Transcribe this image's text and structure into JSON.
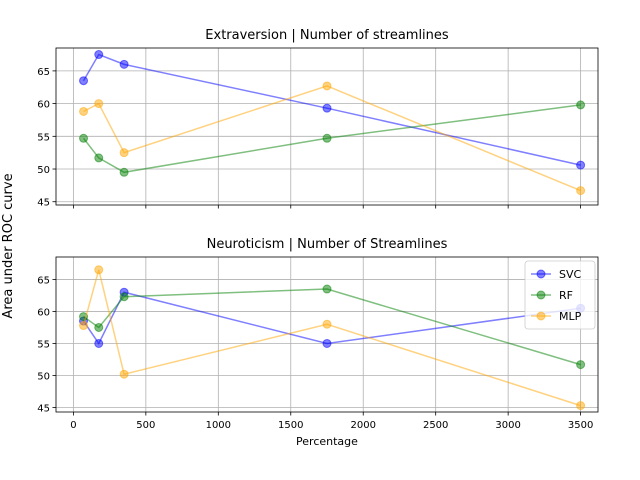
{
  "ylabel": "Area under ROC curve",
  "chart_data": [
    {
      "type": "line",
      "title": "Extraversion | Number of streamlines",
      "xlabel": "",
      "ylabel": "",
      "xlim": [
        -120,
        3620
      ],
      "ylim": [
        44.5,
        68.5
      ],
      "xticks": [
        0,
        500,
        1000,
        1500,
        2000,
        2500,
        3000,
        3500
      ],
      "xtick_labels_visible": false,
      "yticks": [
        45,
        50,
        55,
        60,
        65
      ],
      "grid": true,
      "legend": null,
      "x": [
        70,
        175,
        350,
        1750,
        3500
      ],
      "series": [
        {
          "name": "SVC",
          "color": "#0000ff",
          "values": [
            63.5,
            67.5,
            66.0,
            59.3,
            50.6
          ]
        },
        {
          "name": "RF",
          "color": "#008000",
          "values": [
            54.7,
            51.7,
            49.5,
            54.7,
            59.8
          ]
        },
        {
          "name": "MLP",
          "color": "#ffa500",
          "values": [
            58.8,
            60.0,
            52.5,
            62.7,
            46.7
          ]
        }
      ]
    },
    {
      "type": "line",
      "title": "Neuroticism | Number of Streamlines",
      "xlabel": "Percentage",
      "ylabel": "",
      "xlim": [
        -120,
        3620
      ],
      "ylim": [
        44.3,
        68.5
      ],
      "xticks": [
        0,
        500,
        1000,
        1500,
        2000,
        2500,
        3000,
        3500
      ],
      "xtick_labels": [
        "0",
        "500",
        "1000",
        "1500",
        "2000",
        "2500",
        "3000",
        "3500"
      ],
      "xtick_labels_visible": true,
      "yticks": [
        45,
        50,
        55,
        60,
        65
      ],
      "grid": true,
      "legend": "top-right",
      "x": [
        70,
        175,
        350,
        1750,
        3500
      ],
      "series": [
        {
          "name": "SVC",
          "color": "#0000ff",
          "values": [
            58.5,
            55.0,
            63.0,
            55.0,
            60.5
          ]
        },
        {
          "name": "RF",
          "color": "#008000",
          "values": [
            59.2,
            57.5,
            62.3,
            63.5,
            51.7
          ]
        },
        {
          "name": "MLP",
          "color": "#ffa500",
          "values": [
            57.8,
            66.5,
            50.2,
            58.0,
            45.3
          ]
        }
      ]
    }
  ]
}
